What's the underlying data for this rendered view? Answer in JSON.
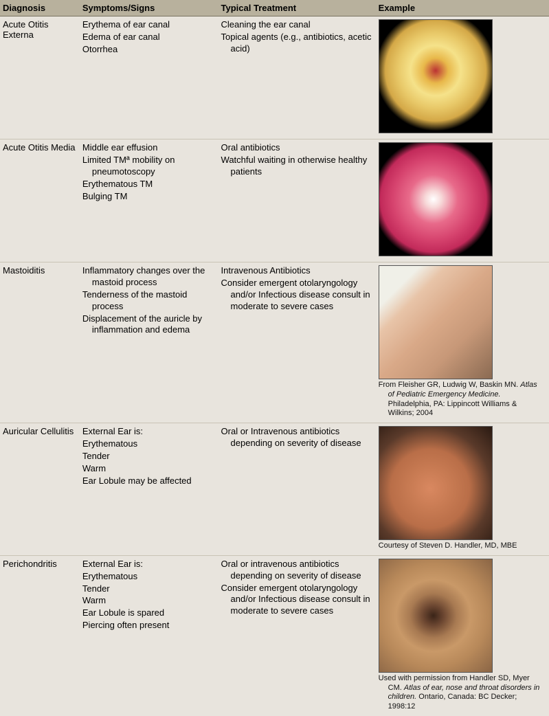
{
  "columns": [
    "Diagnosis",
    "Symptoms/Signs",
    "Typical Treatment",
    "Example"
  ],
  "rows": [
    {
      "diagnosis": "Acute Otitis Externa",
      "symptoms": [
        "Erythema of ear canal",
        "Edema of ear canal",
        "Otorrhea"
      ],
      "treatment": [
        "Cleaning the ear canal",
        "Topical agents (e.g., antibiotics, acetic acid)"
      ],
      "image_bg": "radial-gradient(circle at 50% 45%, #b33 0%, #e8b84a 15%, #f5e28a 30%, #e8c868 45%, #d4a847 60%, #000 72%)",
      "caption_lines": []
    },
    {
      "diagnosis": "Acute Otitis Media",
      "symptoms": [
        "Middle ear effusion",
        "Limited TMª mobility on pneumotoscopy",
        "Erythematous TM",
        "Bulging TM"
      ],
      "treatment": [
        "Oral antibiotics",
        "Watchful waiting in otherwise healthy patients"
      ],
      "image_bg": "radial-gradient(circle at 48% 50%, #fff 0%, #f7d9d9 10%, #e86a8a 30%, #d6436e 50%, #c22a5a 65%, #000 75%)",
      "caption_lines": []
    },
    {
      "diagnosis": "Mastoiditis",
      "symptoms": [
        "Inflammatory changes over the mastoid process",
        "Tenderness of the mastoid process",
        "Displacement of the auricle by inflammation and edema"
      ],
      "treatment": [
        "Intravenous Antibiotics",
        "Consider emergent otolaryngology and/or Infectious disease consult in moderate to severe cases"
      ],
      "image_bg": "linear-gradient(135deg, #f0f0e8 0%, #f0f0e8 18%, #e8c4a8 30%, #d9a988 50%, #c79878 70%, #8a6a52 100%)",
      "caption_lines": [
        {
          "plain": "From Fleisher GR, Ludwig W, Baskin MN. ",
          "italic": "Atlas of Pediatric Emergency Medicine.",
          "tail": " Philadelphia, PA: Lippincott Williams & Wilkins; 2004"
        }
      ]
    },
    {
      "diagnosis": "Auricular Cellulitis",
      "symptoms": [
        "External Ear is:",
        "Erythematous",
        "Tender",
        "Warm",
        "Ear Lobule may be affected"
      ],
      "treatment": [
        "Oral or Intravenous antibiotics depending on severity of disease"
      ],
      "image_bg": "radial-gradient(ellipse at 45% 55%, #d98860 0%, #c77a52 25%, #b96e48 45%, #5a3a2a 70%, #2a1a12 100%)",
      "caption_lines": [
        {
          "plain": "Courtesy of Steven D. Handler, MD, MBE",
          "italic": "",
          "tail": ""
        }
      ]
    },
    {
      "diagnosis": "Perichondritis",
      "symptoms": [
        "External Ear is:",
        "Erythematous",
        "Tender",
        "Warm",
        "Ear Lobule is spared",
        "Piercing often present"
      ],
      "treatment": [
        "Oral or intravenous antibiotics depending on severity of disease",
        "Consider emergent otolaryngology and/or Infectious disease consult in moderate to severe cases"
      ],
      "image_bg": "radial-gradient(ellipse at 48% 50%, #3a2418 0%, #6a4530 12%, #a87a52 28%, #c99968 45%, #b8895a 65%, #8a6545 100%)",
      "caption_lines": [
        {
          "plain": "Used with permission from Handler SD, Myer CM. ",
          "italic": "Atlas of ear, nose and throat disorders in children.",
          "tail": " Ontario, Canada: BC Decker; 1998:12"
        }
      ]
    }
  ]
}
